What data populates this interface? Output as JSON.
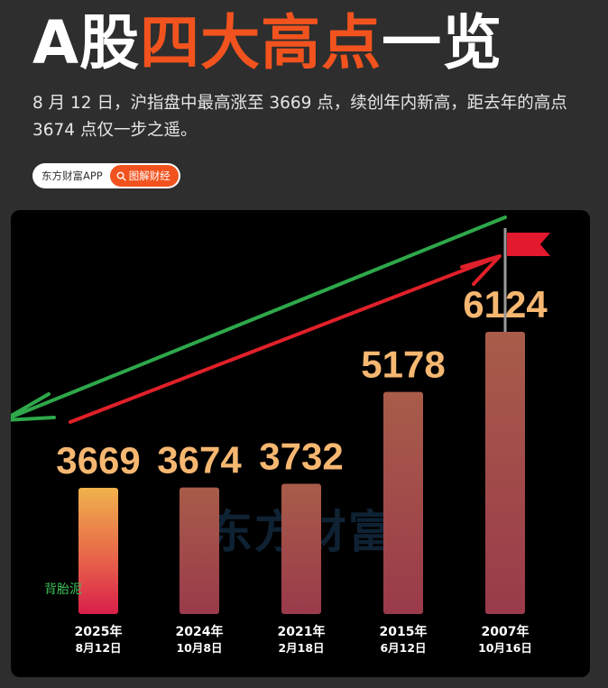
{
  "header": {
    "title_prefix": "A股",
    "title_highlight": "四大高点",
    "title_suffix": "一览",
    "subtitle": "8 月 12 日，沪指盘中最高涨至 3669 点，续创年内新高，距去年的高点 3674 点仅一步之遥。"
  },
  "brand": {
    "name": "东方财富APP",
    "tag": "图解财经",
    "tag_icon": "search-icon",
    "watermark": "东方财富"
  },
  "annotation": {
    "text": "背胎泥"
  },
  "colors": {
    "accent": "#f2531e",
    "value_label": "#f6b771",
    "green_arrow": "#2ea84a",
    "red_arrow": "#e0202a",
    "flag": "#e3192d"
  },
  "chart_data": {
    "type": "bar",
    "categories": [
      "2025年 8月12日",
      "2024年 10月8日",
      "2021年 2月18日",
      "2015年 6月12日",
      "2007年 10月16日"
    ],
    "category_years": [
      "2025年",
      "2024年",
      "2021年",
      "2015年",
      "2007年"
    ],
    "category_dates": [
      "8月12日",
      "10月8日",
      "2月18日",
      "6月12日",
      "10月16日"
    ],
    "values": [
      3669,
      3674,
      3732,
      5178,
      6124
    ],
    "value_labels": [
      "3669",
      "3674",
      "3732",
      "5178",
      "6124"
    ],
    "title": "",
    "xlabel": "",
    "ylabel": "",
    "grid": false,
    "legend": "none"
  }
}
